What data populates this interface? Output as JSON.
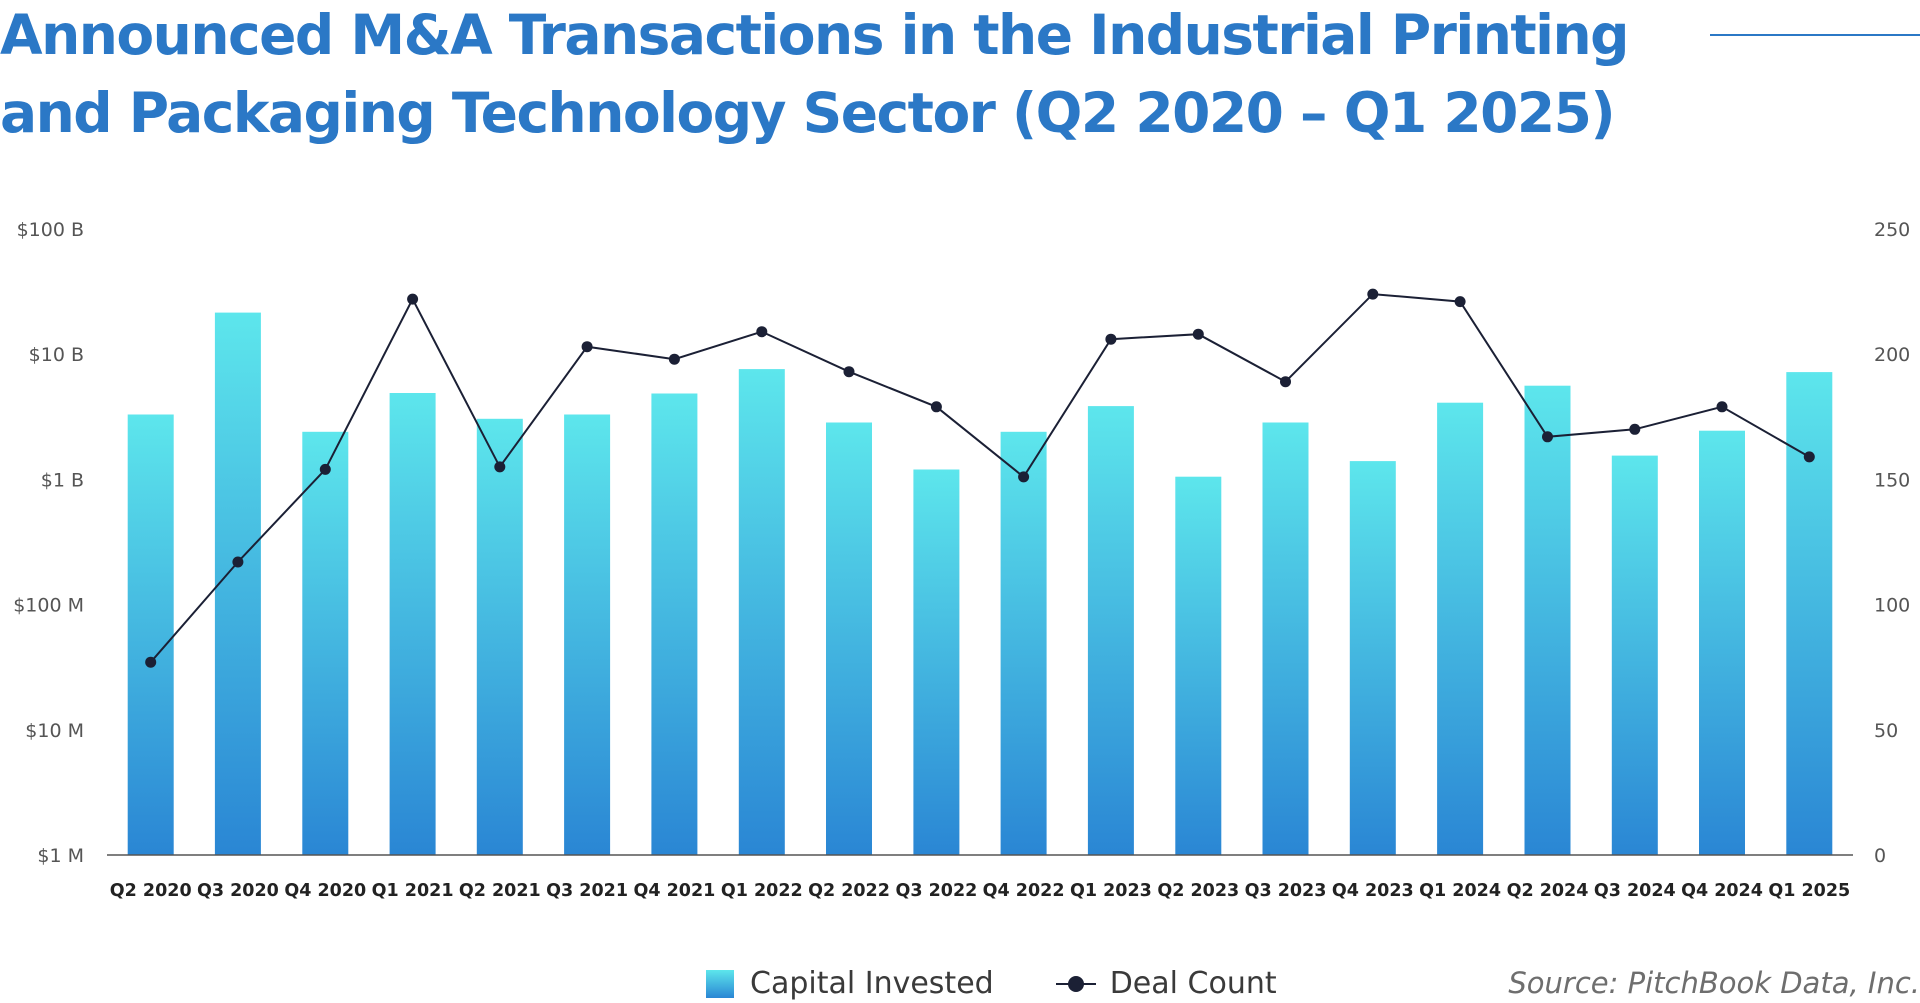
{
  "title": "Announced M&A Transactions in the Industrial Printing and Packaging Technology Sector (Q2 2020 – Q1 2025)",
  "source": "Source: PitchBook Data, Inc.",
  "legend": {
    "capital": "Capital Invested",
    "deals": "Deal Count"
  },
  "colors": {
    "title": "#2b78c6",
    "bar_top": "#5de6ec",
    "bar_bottom": "#2a86d4",
    "line": "#1b2035",
    "axis": "#555555"
  },
  "chart_data": {
    "type": "bar",
    "categories": [
      "Q2 2020",
      "Q3 2020",
      "Q4 2020",
      "Q1 2021",
      "Q2 2021",
      "Q3 2021",
      "Q4 2021",
      "Q1 2022",
      "Q2 2022",
      "Q3 2022",
      "Q4 2022",
      "Q1 2023",
      "Q2 2023",
      "Q3 2023",
      "Q4 2023",
      "Q1 2024",
      "Q2 2024",
      "Q3 2024",
      "Q4 2024",
      "Q1 2025"
    ],
    "series": [
      {
        "name": "Capital Invested",
        "type": "bar",
        "axis": "left",
        "unit": "USD",
        "values": [
          3300000000,
          21500000000,
          2400000000,
          4900000000,
          3050000000,
          3300000000,
          4850000000,
          7600000000,
          2850000000,
          1200000000,
          2400000000,
          3850000000,
          1050000000,
          2850000000,
          1400000000,
          4100000000,
          5600000000,
          1550000000,
          2450000000,
          7200000000
        ]
      },
      {
        "name": "Deal Count",
        "type": "line",
        "axis": "right",
        "values": [
          77,
          117,
          154,
          222,
          155,
          203,
          198,
          209,
          193,
          179,
          151,
          206,
          208,
          189,
          224,
          221,
          167,
          170,
          179,
          159
        ]
      }
    ],
    "left_axis": {
      "scale": "log",
      "range": [
        1000000,
        100000000000
      ],
      "tick_values": [
        1000000,
        10000000,
        100000000,
        1000000000,
        10000000000,
        100000000000
      ],
      "tick_labels": [
        "$1 M",
        "$10 M",
        "$100 M",
        "$1 B",
        "$10 B",
        "$100 B"
      ]
    },
    "right_axis": {
      "scale": "linear",
      "range": [
        0,
        250
      ],
      "ticks": [
        0,
        50,
        100,
        150,
        200,
        250
      ]
    },
    "grid": false,
    "legend_position": "bottom-center"
  }
}
